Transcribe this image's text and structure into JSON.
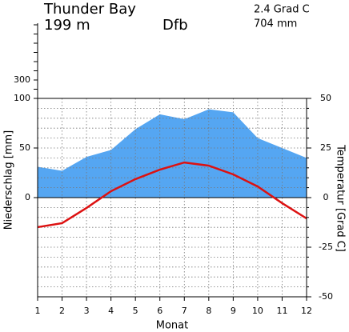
{
  "chart_data": {
    "type": "climate",
    "title": "Thunder Bay",
    "elevation": "199 m",
    "climate_class": "Dfb",
    "mean_temperature": "2.4 Grad C",
    "annual_precipitation": "704 mm",
    "x_label": "Monat",
    "y_label": "Niederschlag [mm]",
    "y2_label": "Temperatur [Grad C]",
    "x": [
      1,
      2,
      3,
      4,
      5,
      6,
      7,
      8,
      9,
      10,
      11,
      12
    ],
    "xlim": [
      1,
      12
    ],
    "xticks": [
      1,
      2,
      3,
      4,
      5,
      6,
      7,
      8,
      9,
      10,
      11,
      12
    ],
    "ylim": [
      -100,
      100
    ],
    "yticks": [
      0,
      50,
      100
    ],
    "upper_yticks": [
      {
        "value": 200,
        "label": null
      },
      300,
      {
        "value": 400,
        "label": null
      },
      {
        "value": 500,
        "label": null
      },
      {
        "value": 600,
        "label": null
      },
      {
        "value": 700,
        "label": null
      },
      {
        "value": 800,
        "label": null
      },
      {
        "value": 900,
        "label": null
      }
    ],
    "y2lim": [
      -50,
      50
    ],
    "y2ticks": [
      -50,
      -25,
      0,
      25,
      50
    ],
    "y2_gridlines": [
      -45,
      -40,
      -35,
      -30,
      -25,
      -20,
      -15,
      -10,
      -5,
      0,
      5,
      10,
      15,
      20,
      25,
      30,
      35,
      40,
      45
    ],
    "grid": true,
    "series": [
      {
        "name": "Niederschlag",
        "color": "#55a6f2",
        "axis": "y",
        "values": [
          31,
          27,
          41,
          48,
          69,
          84,
          79,
          89,
          86,
          60,
          50,
          40
        ]
      },
      {
        "name": "Temperatur",
        "color": "#dd1111",
        "axis": "y2",
        "values": [
          -14.9,
          -12.9,
          -5.2,
          3.2,
          9.3,
          14.1,
          17.7,
          16.1,
          11.7,
          5.6,
          -2.8,
          -10.5
        ]
      }
    ]
  }
}
